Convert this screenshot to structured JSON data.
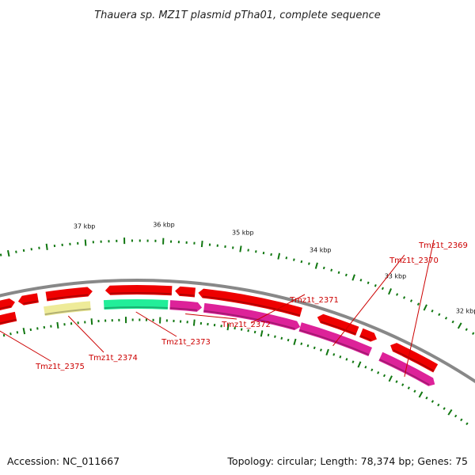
{
  "title": "Thauera sp. MZ1T plasmid pTha01, complete sequence",
  "footer": {
    "accession": "Accession: NC_011667",
    "topology": "Topology: circular; Length: 78,374 bp; Genes: 75"
  },
  "colors": {
    "backbone": "#888888",
    "tick": "#117711",
    "label": "#cc0000",
    "red": "#ee0000",
    "magenta": "#dd2299",
    "green": "#22ee99",
    "yellow": "#eeeb99"
  },
  "scale": {
    "unit": "kbp",
    "labels": [
      {
        "kbp": 32,
        "text": "32 kbp"
      },
      {
        "kbp": 33,
        "text": "33 kbp"
      },
      {
        "kbp": 34,
        "text": "34 kbp"
      },
      {
        "kbp": 35,
        "text": "35 kbp"
      },
      {
        "kbp": 36,
        "text": "36 kbp"
      },
      {
        "kbp": 37,
        "text": "37 kbp"
      }
    ]
  },
  "features": {
    "outer_strand": [
      {
        "color": "red"
      },
      {
        "color": "red"
      },
      {
        "color": "red"
      },
      {
        "color": "red"
      },
      {
        "color": "red"
      },
      {
        "color": "red"
      },
      {
        "color": "red"
      },
      {
        "color": "red"
      },
      {
        "color": "red"
      }
    ],
    "inner_strand": [
      {
        "name": "Tmz1t_2369",
        "color": "magenta"
      },
      {
        "name": "Tmz1t_2370",
        "color": "magenta"
      },
      {
        "name": "Tmz1t_2371",
        "color": "magenta"
      },
      {
        "name": "Tmz1t_2372",
        "color": "magenta"
      },
      {
        "name": "Tmz1t_2373",
        "color": "green"
      },
      {
        "name": "Tmz1t_2374",
        "color": "yellow"
      },
      {
        "name": "Tmz1t_2375",
        "color": "red"
      }
    ]
  }
}
